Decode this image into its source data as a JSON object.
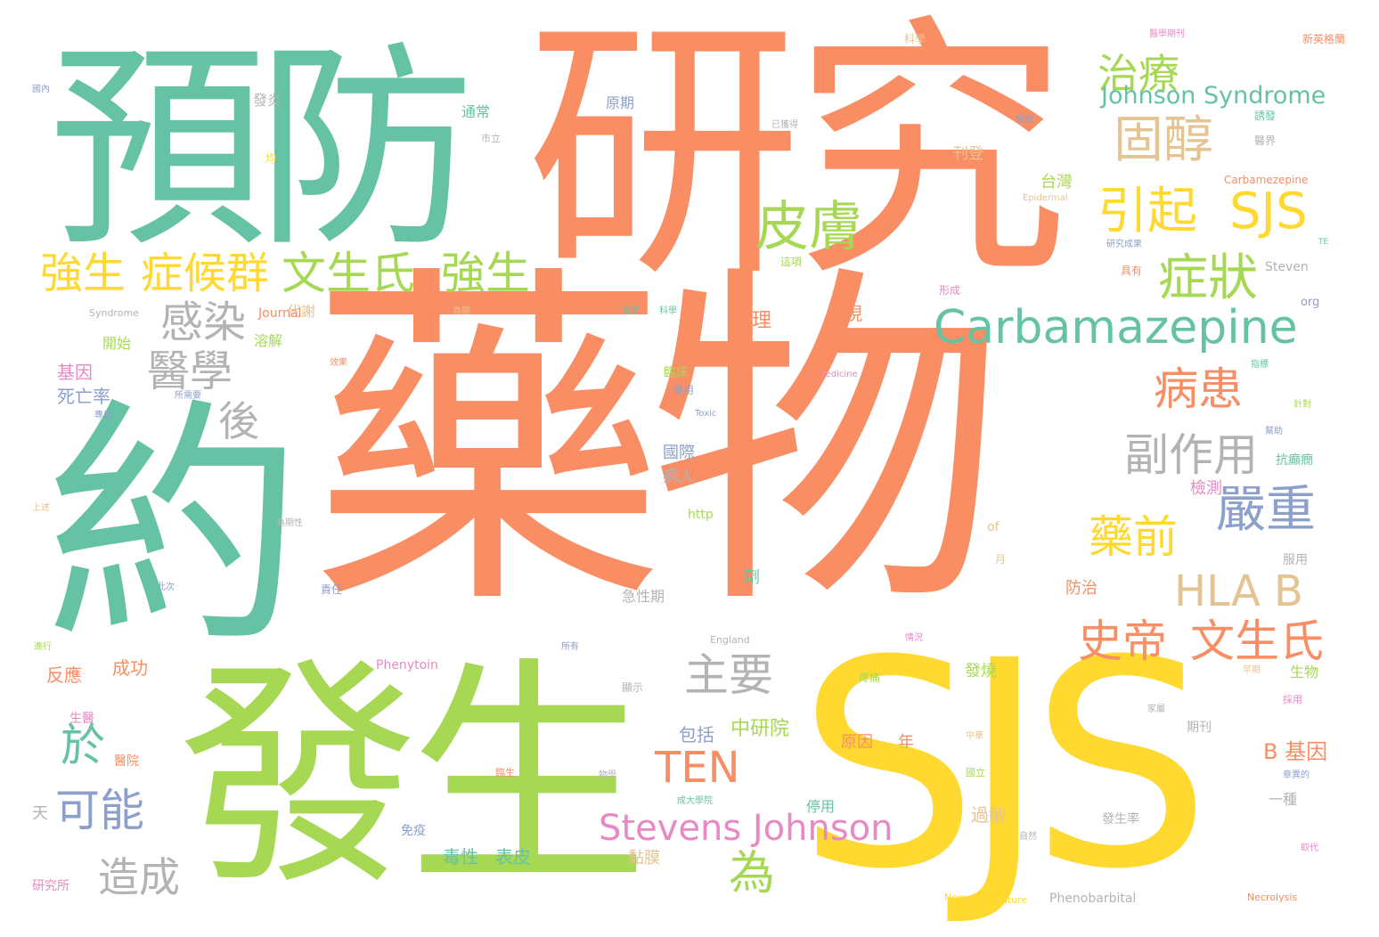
{
  "colors": {
    "background": "#ffffff",
    "orange": "#f98d63",
    "green": "#66c2a5",
    "lime": "#a6d854",
    "yellow": "#ffd92f",
    "blue": "#8da0cb",
    "pink": "#e78ac3",
    "tan": "#e5c494",
    "gray": "#b3b3b3"
  },
  "words": {
    "w1": "藥物",
    "w2": "研究",
    "w3": "預防",
    "w4": "約",
    "w5": "發生",
    "w6": "SJS",
    "w7": "Carbamazepine",
    "w8": "治療",
    "w9": "固醇",
    "w10": "Johnson Syndrome",
    "w11": "引起",
    "w12": "SJS",
    "w13": "症狀",
    "w14": "皮膚",
    "w15": "強生",
    "w16": "症候群",
    "w17": "文生氏",
    "w18": "強生",
    "w19": "感染",
    "w20": "醫學",
    "w21": "病患",
    "w22": "副作用",
    "w23": "嚴重",
    "w24": "後",
    "w25": "藥前",
    "w26": "HLA B",
    "w27": "史帝",
    "w28": "文生氏",
    "w29": "主要",
    "w30": "於",
    "w31": "可能",
    "w32": "TEN",
    "w33": "Stevens Johnson",
    "w34": "為",
    "w35": "造成",
    "w36": "中研院",
    "w37": "包括",
    "w38": "B 基因",
    "w39": "台灣",
    "w40": "Carbamezepine",
    "w41": "處理",
    "w42": "出現",
    "w43": "刊登",
    "w44": "科學",
    "w45": "新英格蘭",
    "w46": "醫學期刊",
    "w47": "原期",
    "w48": "通常",
    "w49": "發炎",
    "w50": "基因",
    "w51": "死亡率",
    "w52": "開始",
    "w53": "溶解",
    "w54": "代謝",
    "w55": "Journal",
    "w56": "國際",
    "w57": "病人",
    "w58": "檢測",
    "w59": "抗癲癇",
    "w60": "成功",
    "w61": "反應",
    "w62": "生醫",
    "w63": "醫院",
    "w64": "Phenytoin",
    "w65": "毒性",
    "w66": "表皮",
    "w67": "黏膜",
    "w68": "過敏",
    "w69": "停用",
    "w70": "免疫",
    "w71": "Phenobarbital",
    "w72": "研究所",
    "w73": "天",
    "w74": "發燒",
    "w75": "一種",
    "w76": "發生率",
    "w77": "防治",
    "w78": "生物",
    "w79": "服用",
    "w80": "期刊",
    "w81": "年",
    "w82": "原因",
    "w83": "臨床",
    "w84": "使用",
    "w85": "劑",
    "w86": "急性期",
    "w87": "http",
    "w88": "of",
    "w89": "月",
    "w90": "Steven",
    "w91": "org",
    "w92": "Syndrome",
    "w93": "Medicine",
    "w94": "Toxic",
    "w95": "England",
    "w96": "Epidermal",
    "w97": "Necrolysis",
    "w98": "Nature",
    "w99": "New",
    "w100": "TE",
    "w101": "顯示",
    "w102": "國內",
    "w103": "醫界",
    "w104": "誘發",
    "w105": "具有",
    "w106": "形成",
    "w107": "這項",
    "w108": "研究成果",
    "w109": "指標",
    "w110": "針對",
    "w111": "均",
    "w112": "市立",
    "w113": "已獲得",
    "w114": "幫助",
    "w115": "為期",
    "w116": "採用",
    "w117": "細胞",
    "w118": "早期",
    "w119": "責任",
    "w120": "進行",
    "w121": "上述",
    "w122": "此次",
    "w123": "為期性",
    "w124": "所有",
    "w125": "情況",
    "w126": "疼痛",
    "w127": "家屬",
    "w128": "章異的",
    "w129": "取代",
    "w130": "自然",
    "w131": "國立",
    "w132": "中華",
    "w133": "臨生",
    "w134": "物學",
    "w135": "成大學院",
    "w136": "高度",
    "w137": "科學",
    "w138": "效果",
    "w139": "所需要",
    "w140": "專業"
  }
}
